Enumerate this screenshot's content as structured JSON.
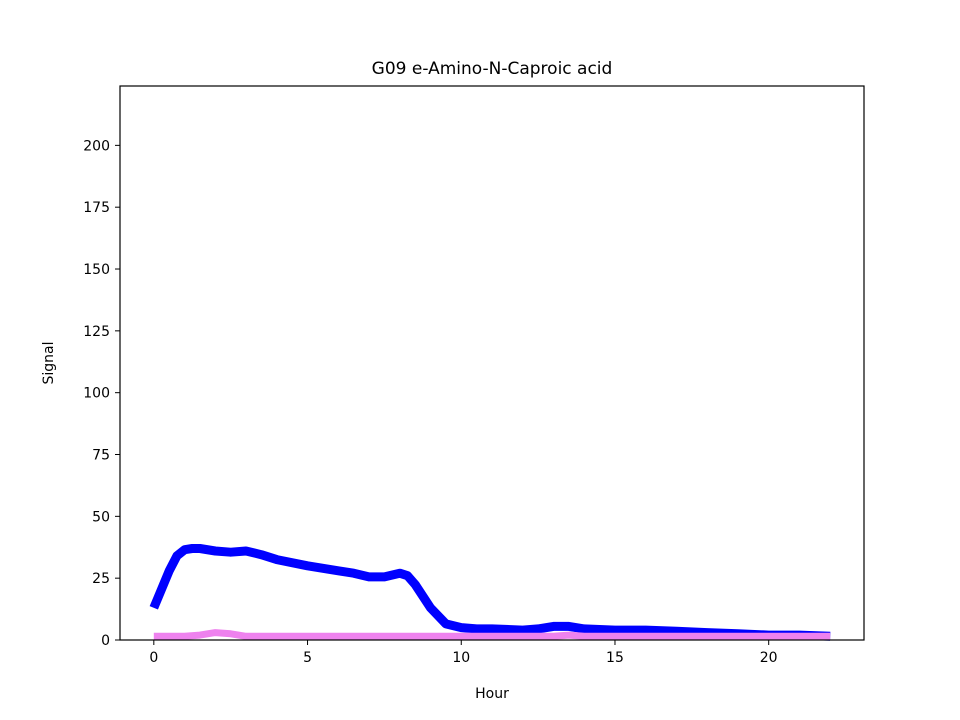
{
  "chart_data": {
    "type": "line",
    "title": "G09 e-Amino-N-Caproic acid",
    "xlabel": "Hour",
    "ylabel": "Signal",
    "xlim": [
      -1.1,
      23.1
    ],
    "ylim": [
      0,
      224
    ],
    "xticks": [
      0,
      5,
      10,
      15,
      20
    ],
    "yticks": [
      0,
      25,
      50,
      75,
      100,
      125,
      150,
      175,
      200
    ],
    "grid": false,
    "legend": "none",
    "series": [
      {
        "color": "#0000ff",
        "x": [
          0,
          0.5,
          0.75,
          1,
          1.25,
          1.5,
          2,
          2.5,
          3,
          3.5,
          4,
          5,
          6,
          6.5,
          7,
          7.5,
          8,
          8.25,
          8.5,
          9,
          9.5,
          10,
          10.5,
          11,
          12,
          12.5,
          13,
          13.5,
          14,
          15,
          16,
          17,
          18,
          19,
          20,
          21,
          22
        ],
        "y": [
          13,
          28,
          34,
          36.5,
          37,
          37,
          36,
          35.5,
          36,
          34.5,
          32.5,
          30,
          28,
          27,
          25.5,
          25.5,
          27,
          26,
          22.5,
          13,
          6.5,
          5,
          4.5,
          4.5,
          4,
          4.5,
          5.5,
          5.5,
          4.5,
          4,
          4,
          3.5,
          3,
          2.5,
          2,
          2,
          1.5
        ]
      },
      {
        "color": "#ee82ee",
        "x": [
          0,
          1,
          1.5,
          2,
          2.5,
          3,
          4,
          10,
          13,
          13.5,
          14,
          16,
          22
        ],
        "y": [
          1.5,
          1.5,
          2,
          3,
          2.5,
          1.5,
          1.5,
          1.5,
          1.5,
          2,
          1.5,
          1.5,
          1.5
        ]
      }
    ]
  }
}
